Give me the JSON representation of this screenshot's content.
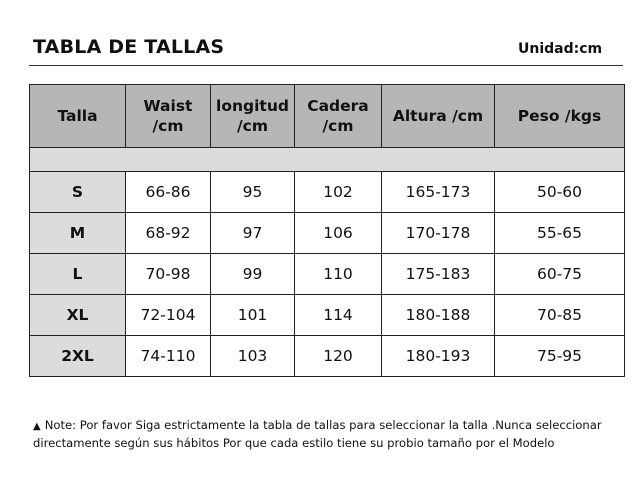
{
  "header": {
    "title": "TABLA DE TALLAS",
    "unit": "Unidad:cm"
  },
  "table": {
    "columns": [
      {
        "line1": "Talla",
        "line2": ""
      },
      {
        "line1": "Waist",
        "line2": "/cm"
      },
      {
        "line1": "longitud",
        "line2": "/cm"
      },
      {
        "line1": "Cadera",
        "line2": "/cm"
      },
      {
        "line1": "Altura /cm",
        "line2": ""
      },
      {
        "line1": "Peso /kgs",
        "line2": ""
      }
    ],
    "rows": [
      [
        "S",
        "66-86",
        "95",
        "102",
        "165-173",
        "50-60"
      ],
      [
        "M",
        "68-92",
        "97",
        "106",
        "170-178",
        "55-65"
      ],
      [
        "L",
        "70-98",
        "99",
        "110",
        "175-183",
        "60-75"
      ],
      [
        "XL",
        "72-104",
        "101",
        "114",
        "180-188",
        "70-85"
      ],
      [
        "2XL",
        "74-110",
        "103",
        "120",
        "180-193",
        "75-95"
      ]
    ]
  },
  "note": {
    "icon": "triangle-up-icon",
    "text": "Note: Por favor Siga estrictamente la tabla de tallas para seleccionar la talla .Nunca  seleccionar directamente según sus hábitos Por que cada estilo tiene su probio tamaño por el Modelo"
  }
}
